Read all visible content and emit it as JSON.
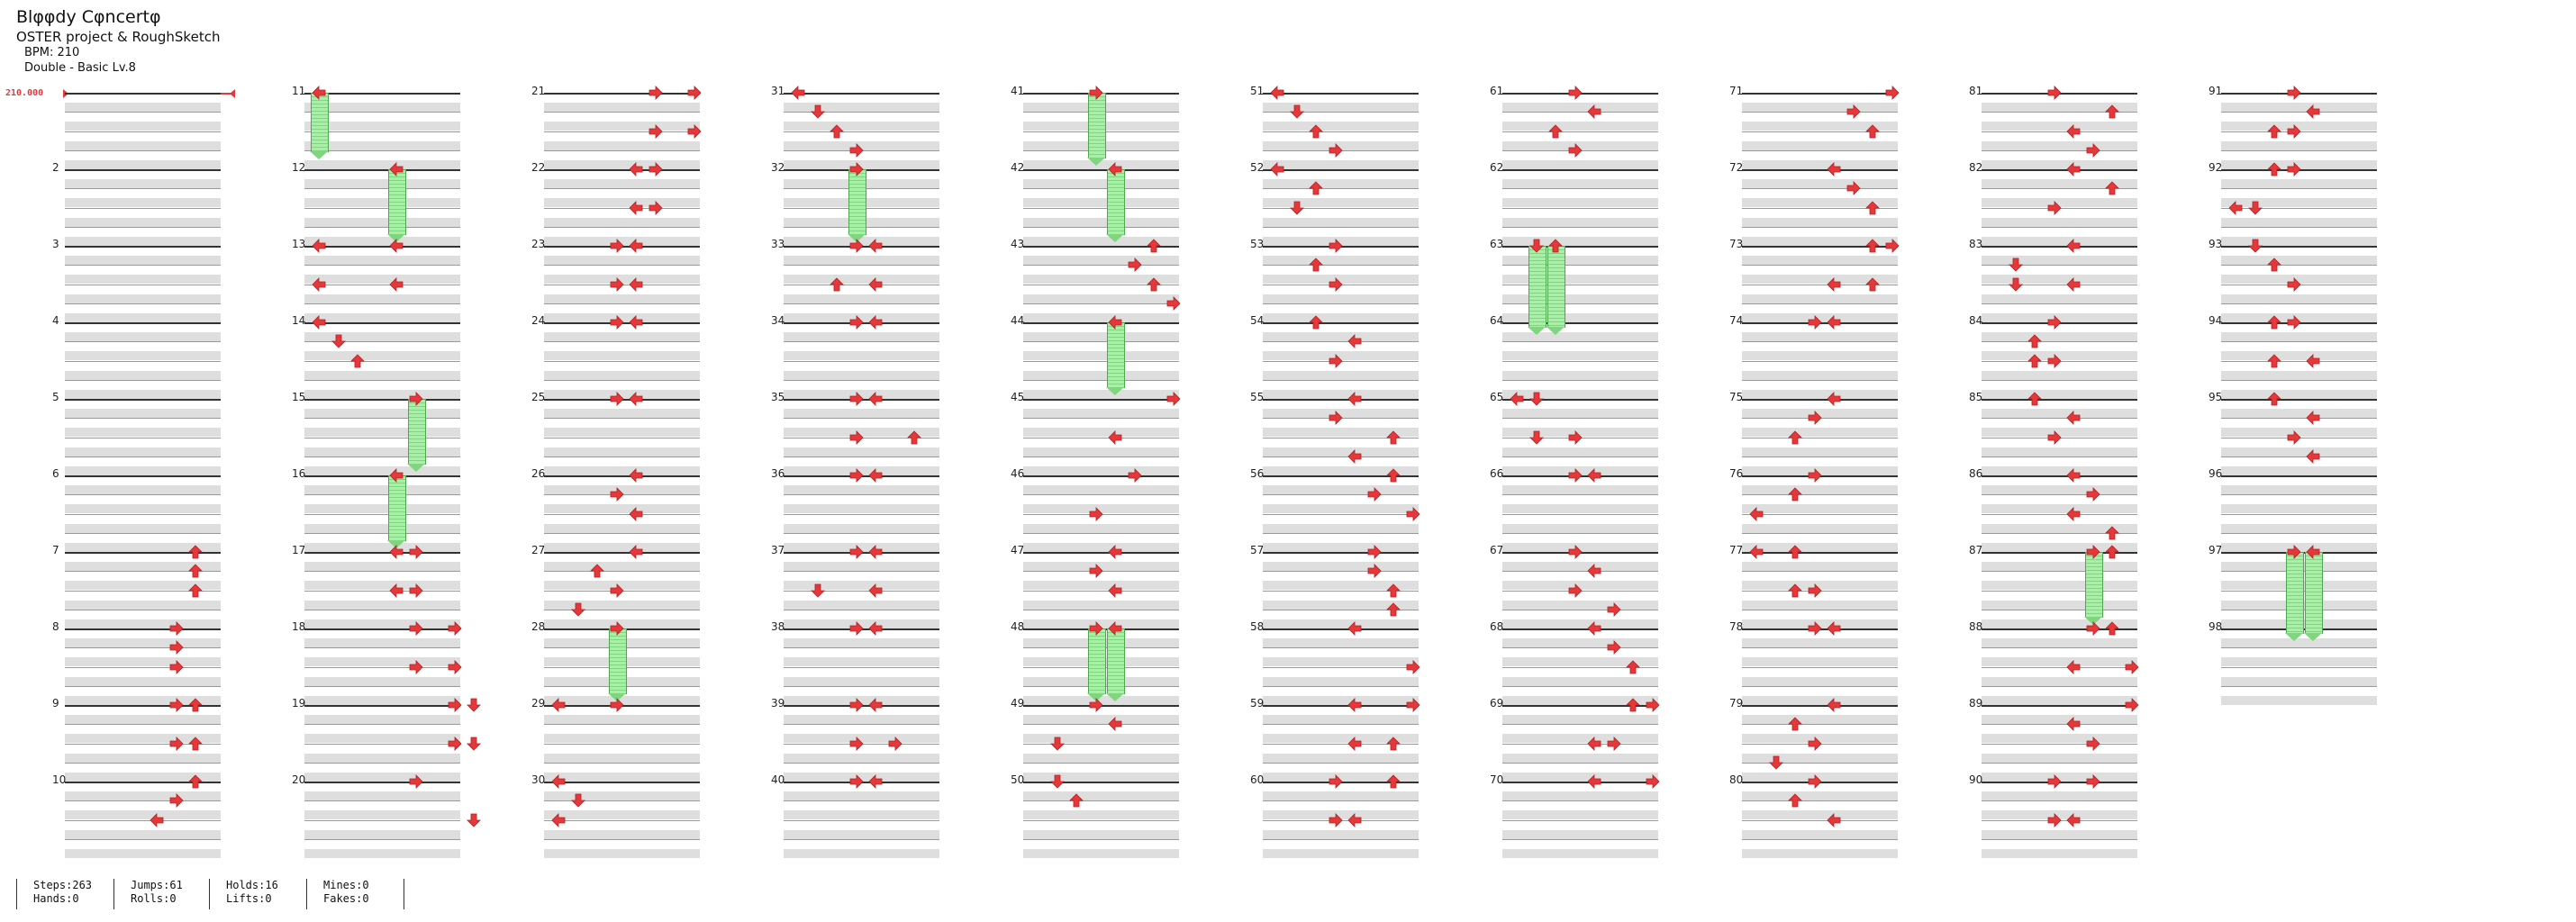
{
  "song": {
    "title": "Blφφdy Cφncertφ",
    "artist": "OSTER project & RoughSketch",
    "bpm_line": "BPM: 210",
    "difficulty": "Double - Basic  Lv.8"
  },
  "bpm_marker": {
    "label": "210.000"
  },
  "measure_numbers": [
    "",
    "2",
    "3",
    "4",
    "5",
    "6",
    "7",
    "8",
    "9",
    "10",
    "11",
    "12",
    "13",
    "14",
    "15",
    "16",
    "17",
    "18",
    "19",
    "20",
    "21",
    "22",
    "23",
    "24",
    "25",
    "26",
    "27",
    "28",
    "29",
    "30",
    "31",
    "32",
    "33",
    "34",
    "35",
    "36",
    "37",
    "38",
    "39",
    "40",
    "41",
    "42",
    "43",
    "44",
    "45",
    "46",
    "47",
    "48",
    "49",
    "50",
    "51",
    "52",
    "53",
    "54",
    "55",
    "56",
    "57",
    "58",
    "59",
    "60",
    "61",
    "62",
    "63",
    "64",
    "65",
    "66",
    "67",
    "68",
    "69",
    "70",
    "71",
    "72",
    "73",
    "74",
    "75",
    "76",
    "77",
    "78",
    "79",
    "80",
    "81",
    "82",
    "83",
    "84",
    "85",
    "86",
    "87",
    "88",
    "89",
    "90",
    "91",
    "92",
    "93",
    "94",
    "95",
    "96",
    "97",
    "98"
  ],
  "stats": {
    "steps": "Steps:263",
    "hands": "Hands:0",
    "jumps": "Jumps:61",
    "rolls": "Rolls:0",
    "holds": "Holds:16",
    "lifts": "Lifts:0",
    "mines": "Mines:0",
    "fakes": "Fakes:0"
  },
  "colors": {
    "arrow": "#e5383b",
    "hold": "#7fd67f",
    "bpm": "#e5383b"
  },
  "chart_data": {
    "type": "step-chart",
    "lanes": 10,
    "measures": 98,
    "notes": [
      [
        7,
        0,
        6
      ],
      [
        7,
        1,
        6
      ],
      [
        7,
        2,
        6
      ],
      [
        8,
        0,
        5
      ],
      [
        8,
        1,
        5
      ],
      [
        8,
        2,
        5
      ],
      [
        9,
        0,
        5
      ],
      [
        9,
        0,
        6
      ],
      [
        9,
        2,
        5
      ],
      [
        9,
        2,
        6
      ],
      [
        10,
        0,
        6
      ],
      [
        10,
        1,
        5
      ],
      [
        10,
        2,
        4
      ],
      [
        11,
        0,
        0
      ],
      [
        12,
        0,
        4
      ],
      [
        13,
        0,
        0
      ],
      [
        13,
        0,
        4
      ],
      [
        13,
        2,
        0
      ],
      [
        13,
        2,
        4
      ],
      [
        14,
        0,
        0
      ],
      [
        14,
        1,
        1
      ],
      [
        14,
        2,
        2
      ],
      [
        15,
        0,
        5
      ],
      [
        16,
        0,
        4
      ],
      [
        17,
        0,
        4
      ],
      [
        17,
        0,
        5
      ],
      [
        17,
        2,
        4
      ],
      [
        17,
        2,
        5
      ],
      [
        18,
        0,
        5
      ],
      [
        18,
        0,
        7
      ],
      [
        18,
        2,
        5
      ],
      [
        18,
        2,
        7
      ],
      [
        19,
        0,
        7
      ],
      [
        19,
        0,
        8
      ],
      [
        19,
        2,
        7
      ],
      [
        19,
        2,
        8
      ],
      [
        20,
        0,
        5
      ],
      [
        20,
        2,
        8
      ],
      [
        21,
        0,
        5
      ],
      [
        21,
        0,
        7
      ],
      [
        21,
        2,
        5
      ],
      [
        21,
        2,
        7
      ],
      [
        22,
        0,
        4
      ],
      [
        22,
        0,
        5
      ],
      [
        22,
        2,
        4
      ],
      [
        22,
        2,
        5
      ],
      [
        23,
        0,
        3
      ],
      [
        23,
        0,
        4
      ],
      [
        23,
        2,
        3
      ],
      [
        23,
        2,
        4
      ],
      [
        24,
        0,
        3
      ],
      [
        24,
        0,
        4
      ],
      [
        25,
        0,
        3
      ],
      [
        25,
        0,
        4
      ],
      [
        26,
        0,
        4
      ],
      [
        26,
        1,
        3
      ],
      [
        26,
        2,
        4
      ],
      [
        27,
        0,
        4
      ],
      [
        27,
        1,
        2
      ],
      [
        27,
        2,
        3
      ],
      [
        27,
        3,
        1
      ],
      [
        28,
        0,
        3
      ],
      [
        29,
        0,
        0
      ],
      [
        29,
        0,
        3
      ],
      [
        30,
        0,
        0
      ],
      [
        30,
        1,
        1
      ],
      [
        30,
        2,
        0
      ],
      [
        31,
        0,
        0
      ],
      [
        31,
        1,
        1
      ],
      [
        31,
        2,
        2
      ],
      [
        31,
        3,
        3
      ],
      [
        32,
        0,
        3
      ],
      [
        33,
        0,
        3
      ],
      [
        33,
        0,
        4
      ],
      [
        33,
        2,
        2
      ],
      [
        33,
        2,
        4
      ],
      [
        34,
        0,
        3
      ],
      [
        34,
        0,
        4
      ],
      [
        35,
        0,
        3
      ],
      [
        35,
        0,
        4
      ],
      [
        35,
        2,
        3
      ],
      [
        35,
        2,
        6
      ],
      [
        36,
        0,
        3
      ],
      [
        36,
        0,
        4
      ],
      [
        37,
        0,
        3
      ],
      [
        37,
        0,
        4
      ],
      [
        37,
        2,
        1
      ],
      [
        37,
        2,
        4
      ],
      [
        38,
        0,
        3
      ],
      [
        38,
        0,
        4
      ],
      [
        39,
        0,
        3
      ],
      [
        39,
        0,
        4
      ],
      [
        39,
        2,
        3
      ],
      [
        39,
        2,
        5
      ],
      [
        40,
        0,
        3
      ],
      [
        40,
        0,
        4
      ],
      [
        41,
        0,
        3
      ],
      [
        42,
        0,
        4
      ],
      [
        43,
        0,
        6
      ],
      [
        43,
        1,
        5
      ],
      [
        43,
        2,
        6
      ],
      [
        43,
        3,
        7
      ],
      [
        44,
        0,
        4
      ],
      [
        45,
        0,
        7
      ],
      [
        45,
        2,
        4
      ],
      [
        46,
        0,
        5
      ],
      [
        46,
        2,
        3
      ],
      [
        47,
        0,
        4
      ],
      [
        47,
        1,
        3
      ],
      [
        47,
        2,
        4
      ],
      [
        48,
        0,
        3
      ],
      [
        48,
        0,
        4
      ],
      [
        49,
        0,
        3
      ],
      [
        49,
        1,
        4
      ],
      [
        49,
        2,
        1
      ],
      [
        50,
        0,
        1
      ],
      [
        50,
        1,
        2
      ],
      [
        51,
        0,
        0
      ],
      [
        51,
        1,
        1
      ],
      [
        51,
        2,
        2
      ],
      [
        51,
        3,
        3
      ],
      [
        52,
        0,
        0
      ],
      [
        52,
        1,
        2
      ],
      [
        52,
        2,
        1
      ],
      [
        53,
        0,
        3
      ],
      [
        53,
        1,
        2
      ],
      [
        53,
        2,
        3
      ],
      [
        54,
        0,
        2
      ],
      [
        54,
        1,
        4
      ],
      [
        54,
        2,
        3
      ],
      [
        55,
        0,
        4
      ],
      [
        55,
        1,
        3
      ],
      [
        55,
        2,
        6
      ],
      [
        55,
        3,
        4
      ],
      [
        56,
        0,
        6
      ],
      [
        56,
        1,
        5
      ],
      [
        56,
        2,
        7
      ],
      [
        57,
        0,
        5
      ],
      [
        57,
        1,
        5
      ],
      [
        57,
        2,
        6
      ],
      [
        57,
        3,
        6
      ],
      [
        58,
        0,
        4
      ],
      [
        58,
        2,
        7
      ],
      [
        59,
        0,
        4
      ],
      [
        59,
        0,
        7
      ],
      [
        59,
        2,
        4
      ],
      [
        59,
        2,
        6
      ],
      [
        60,
        0,
        3
      ],
      [
        60,
        0,
        6
      ],
      [
        60,
        2,
        3
      ],
      [
        60,
        2,
        4
      ],
      [
        61,
        0,
        3
      ],
      [
        61,
        1,
        4
      ],
      [
        61,
        2,
        2
      ],
      [
        61,
        3,
        3
      ],
      [
        63,
        0,
        1
      ],
      [
        63,
        0,
        2
      ],
      [
        65,
        0,
        0
      ],
      [
        65,
        0,
        1
      ],
      [
        65,
        2,
        1
      ],
      [
        65,
        2,
        3
      ],
      [
        66,
        0,
        3
      ],
      [
        66,
        0,
        4
      ],
      [
        67,
        0,
        3
      ],
      [
        67,
        1,
        4
      ],
      [
        67,
        2,
        3
      ],
      [
        67,
        3,
        5
      ],
      [
        68,
        0,
        4
      ],
      [
        68,
        1,
        5
      ],
      [
        68,
        2,
        6
      ],
      [
        69,
        0,
        6
      ],
      [
        69,
        0,
        7
      ],
      [
        69,
        2,
        4
      ],
      [
        69,
        2,
        5
      ],
      [
        70,
        0,
        4
      ],
      [
        70,
        0,
        7
      ],
      [
        71,
        0,
        7
      ],
      [
        71,
        1,
        5
      ],
      [
        71,
        2,
        6
      ],
      [
        72,
        0,
        4
      ],
      [
        72,
        1,
        5
      ],
      [
        72,
        2,
        6
      ],
      [
        73,
        0,
        6
      ],
      [
        73,
        0,
        7
      ],
      [
        73,
        2,
        4
      ],
      [
        73,
        2,
        6
      ],
      [
        74,
        0,
        3
      ],
      [
        74,
        0,
        4
      ],
      [
        75,
        0,
        4
      ],
      [
        75,
        1,
        3
      ],
      [
        75,
        2,
        2
      ],
      [
        76,
        0,
        3
      ],
      [
        76,
        1,
        2
      ],
      [
        76,
        2,
        0
      ],
      [
        77,
        0,
        0
      ],
      [
        77,
        0,
        2
      ],
      [
        77,
        2,
        2
      ],
      [
        77,
        2,
        3
      ],
      [
        78,
        0,
        3
      ],
      [
        78,
        0,
        4
      ],
      [
        79,
        0,
        4
      ],
      [
        79,
        1,
        2
      ],
      [
        79,
        2,
        3
      ],
      [
        79,
        3,
        1
      ],
      [
        80,
        0,
        3
      ],
      [
        80,
        1,
        2
      ],
      [
        80,
        2,
        4
      ],
      [
        81,
        0,
        3
      ],
      [
        81,
        1,
        6
      ],
      [
        81,
        2,
        4
      ],
      [
        81,
        3,
        5
      ],
      [
        82,
        0,
        4
      ],
      [
        82,
        1,
        6
      ],
      [
        82,
        2,
        3
      ],
      [
        83,
        0,
        4
      ],
      [
        83,
        1,
        1
      ],
      [
        83,
        2,
        1
      ],
      [
        83,
        2,
        4
      ],
      [
        84,
        0,
        3
      ],
      [
        84,
        1,
        2
      ],
      [
        84,
        2,
        2
      ],
      [
        84,
        2,
        3
      ],
      [
        85,
        0,
        2
      ],
      [
        85,
        1,
        4
      ],
      [
        85,
        2,
        3
      ],
      [
        86,
        0,
        4
      ],
      [
        86,
        1,
        5
      ],
      [
        86,
        2,
        4
      ],
      [
        86,
        3,
        6
      ],
      [
        87,
        0,
        6
      ],
      [
        87,
        0,
        5
      ],
      [
        88,
        0,
        5
      ],
      [
        88,
        0,
        6
      ],
      [
        88,
        2,
        4
      ],
      [
        88,
        2,
        7
      ],
      [
        89,
        0,
        7
      ],
      [
        89,
        1,
        4
      ],
      [
        89,
        2,
        5
      ],
      [
        90,
        0,
        3
      ],
      [
        90,
        0,
        5
      ],
      [
        90,
        2,
        3
      ],
      [
        90,
        2,
        4
      ],
      [
        91,
        0,
        3
      ],
      [
        91,
        1,
        4
      ],
      [
        91,
        2,
        2
      ],
      [
        91,
        2,
        3
      ],
      [
        92,
        0,
        2
      ],
      [
        92,
        0,
        3
      ],
      [
        92,
        2,
        0
      ],
      [
        92,
        2,
        1
      ],
      [
        93,
        0,
        1
      ],
      [
        93,
        1,
        2
      ],
      [
        93,
        2,
        3
      ],
      [
        94,
        0,
        2
      ],
      [
        94,
        0,
        3
      ],
      [
        94,
        2,
        2
      ],
      [
        94,
        2,
        4
      ],
      [
        95,
        0,
        2
      ],
      [
        95,
        1,
        4
      ],
      [
        95,
        2,
        3
      ],
      [
        95,
        3,
        4
      ],
      [
        97,
        0,
        3
      ],
      [
        97,
        0,
        4
      ]
    ],
    "holds": [
      [
        11,
        0,
        0,
        3.6
      ],
      [
        12,
        0,
        4,
        4
      ],
      [
        15,
        0,
        5,
        4
      ],
      [
        16,
        0,
        4,
        4
      ],
      [
        28,
        0,
        3,
        4
      ],
      [
        32,
        0,
        3,
        4
      ],
      [
        41,
        0,
        3,
        4
      ],
      [
        42,
        0,
        4,
        4
      ],
      [
        44,
        0,
        4,
        4
      ],
      [
        48,
        0,
        3,
        4
      ],
      [
        48,
        0,
        4,
        4
      ],
      [
        63,
        0,
        1,
        5
      ],
      [
        63,
        0,
        2,
        5
      ],
      [
        87,
        0,
        5,
        4
      ],
      [
        97,
        0,
        3,
        5
      ],
      [
        97,
        0,
        4,
        5
      ]
    ]
  }
}
